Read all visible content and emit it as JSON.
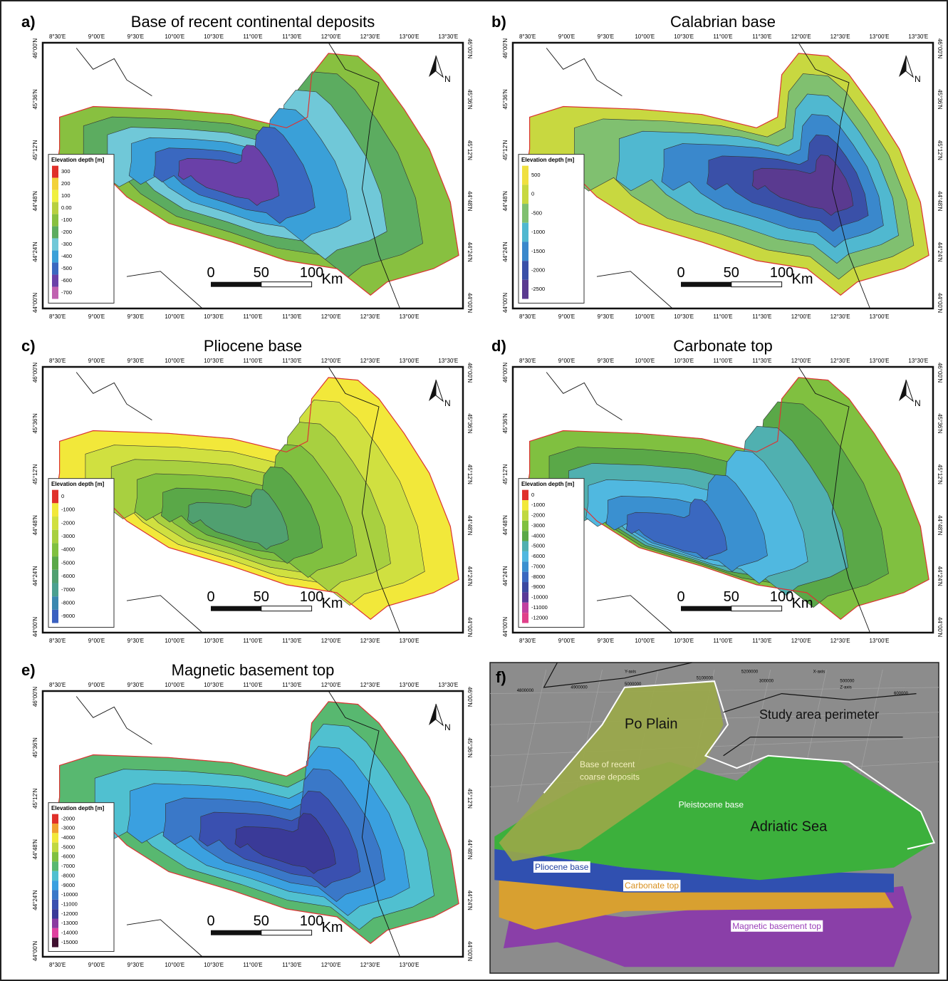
{
  "lon_ticks": [
    "8°30'E",
    "9°00'E",
    "9°30'E",
    "10°00'E",
    "10°30'E",
    "11°00'E",
    "11°30'E",
    "12°00'E",
    "12°30'E",
    "13°00'E",
    "13°30'E"
  ],
  "lat_ticks": [
    "44°00'N",
    "44°24'N",
    "44°48'N",
    "45°12'N",
    "45°36'N",
    "46°00'N"
  ],
  "north": "N",
  "scale": {
    "labels": [
      0,
      50,
      100
    ],
    "unit": "Km"
  },
  "maps": [
    {
      "letter": "a)",
      "title": "Base of recent continental deposits",
      "legend": {
        "title": "Elevation depth [m]",
        "items": [
          "300",
          "200",
          "100",
          "0.00",
          "-100",
          "-200",
          "-300",
          "-400",
          "-500",
          "-600",
          "-700"
        ],
        "colors": [
          "#e0302a",
          "#f2d23a",
          "#f0f040",
          "#b8d040",
          "#88c040",
          "#5cac60",
          "#70c8d8",
          "#3aa0d8",
          "#3a68c0",
          "#6a40a8",
          "#c060b0"
        ]
      }
    },
    {
      "letter": "b)",
      "title": "Calabrian base",
      "legend": {
        "title": "Elevation depth [m]",
        "items": [
          "500",
          "0",
          "-500",
          "-1000",
          "-1500",
          "-2000",
          "-2500"
        ],
        "colors": [
          "#f0e040",
          "#c8d840",
          "#80c070",
          "#50b8d0",
          "#3a88cc",
          "#3a50a8",
          "#5a3a90"
        ]
      }
    },
    {
      "letter": "c)",
      "title": "Pliocene base",
      "legend": {
        "title": "Elevation depth [m]",
        "items": [
          "0",
          "-1000",
          "-2000",
          "-3000",
          "-4000",
          "-5000",
          "-6000",
          "-7000",
          "-8000",
          "-9000"
        ],
        "colors": [
          "#e0302a",
          "#f2e83a",
          "#d0e040",
          "#a8d040",
          "#80c040",
          "#5aa848",
          "#50a070",
          "#4aa090",
          "#3a88b0",
          "#3a60c0"
        ]
      }
    },
    {
      "letter": "d)",
      "title": "Carbonate top",
      "legend": {
        "title": "Elevation depth [m]",
        "items": [
          "0",
          "-1000",
          "-2000",
          "-3000",
          "-4000",
          "-5000",
          "-6000",
          "-7000",
          "-8000",
          "-9000",
          "-10000",
          "-11000",
          "-12000"
        ],
        "colors": [
          "#e0302a",
          "#f2e83a",
          "#c0d840",
          "#80c040",
          "#5aa848",
          "#50b0b0",
          "#50b8e0",
          "#3a90d0",
          "#3a68c0",
          "#3a48a0",
          "#5a3a98",
          "#c040a0",
          "#e0408a"
        ]
      }
    },
    {
      "letter": "e)",
      "title": "Magnetic basement top",
      "legend": {
        "title": "Elevation depth [m]",
        "items": [
          "-2000",
          "-3000",
          "-4000",
          "-5000",
          "-6000",
          "-7000",
          "-8000",
          "-9000",
          "-10000",
          "-11000",
          "-12000",
          "-13000",
          "-14000",
          "-15000"
        ],
        "colors": [
          "#e0302a",
          "#f0a030",
          "#f2e83a",
          "#c0d840",
          "#80c040",
          "#58b870",
          "#50c0d0",
          "#3aa0e0",
          "#3a78c8",
          "#3a50b0",
          "#3a3a98",
          "#8a3aa0",
          "#e040a0",
          "#401030"
        ]
      }
    }
  ],
  "panel_f": {
    "letter": "f)",
    "axis_texts": [
      "Y-axis",
      "X-axis",
      "Z-axis",
      "4800000",
      "4900000",
      "5000000",
      "5100000",
      "5200000",
      "300000",
      "500000",
      "600000"
    ],
    "po_plain": "Po Plain",
    "study_area": "Study area perimeter",
    "base_coarse": [
      "Base of recent",
      "coarse deposits"
    ],
    "pleistocene": "Pleistocene base",
    "adriatic": "Adriatic Sea",
    "pliocene": "Pliocene base",
    "carbonate": "Carbonate top",
    "magnetic": "Magnetic basement top"
  }
}
